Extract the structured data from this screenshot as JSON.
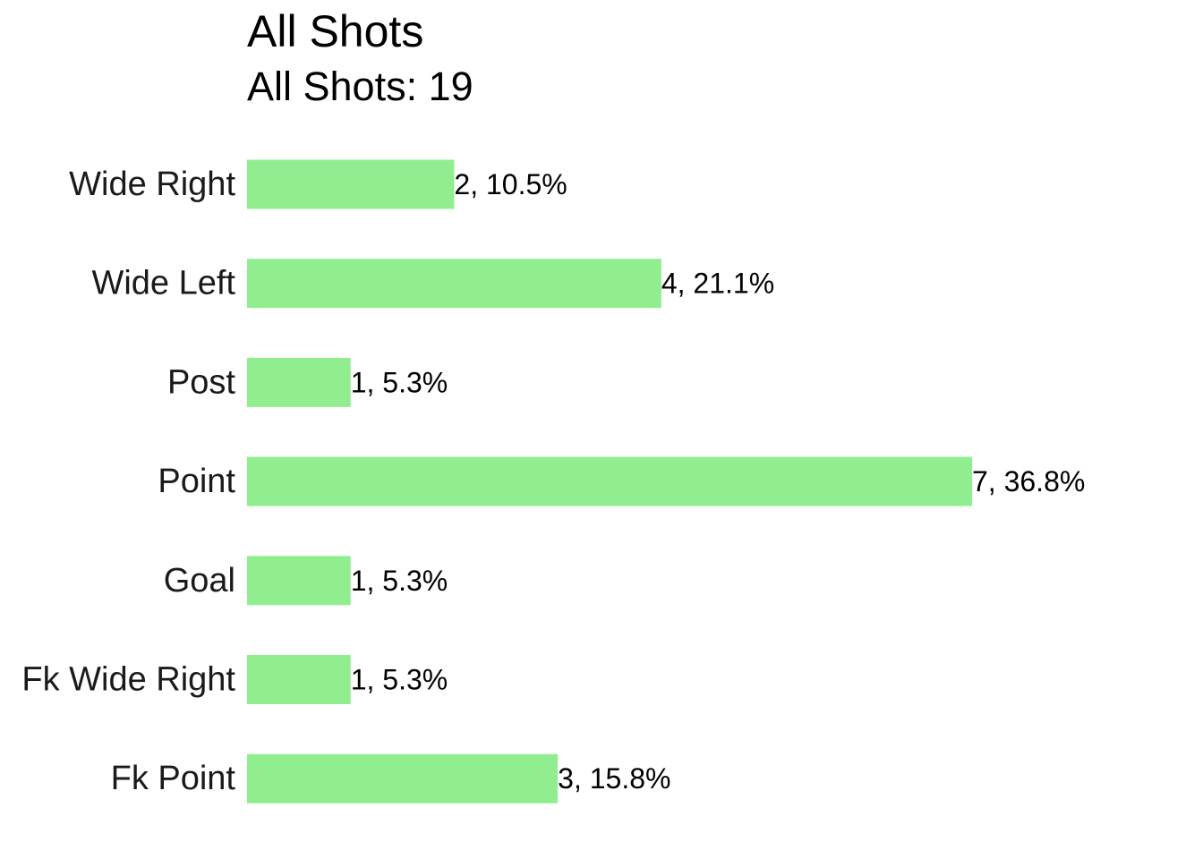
{
  "chart_data": {
    "type": "bar",
    "orientation": "horizontal",
    "title": "All Shots",
    "subtitle": "All Shots: 19",
    "categories": [
      "Wide Right",
      "Wide Left",
      "Post",
      "Point",
      "Goal",
      "Fk Wide Right",
      "Fk Point"
    ],
    "values": [
      2,
      4,
      1,
      7,
      1,
      1,
      3
    ],
    "data_labels": [
      "2, 10.5%",
      "4, 21.1%",
      "1, 5.3%",
      "7, 36.8%",
      "1, 5.3%",
      "1, 5.3%",
      "3, 15.8%"
    ],
    "xlim": [
      0,
      7
    ],
    "grid": false,
    "legend": "none",
    "bar_color": "#90EE90"
  }
}
